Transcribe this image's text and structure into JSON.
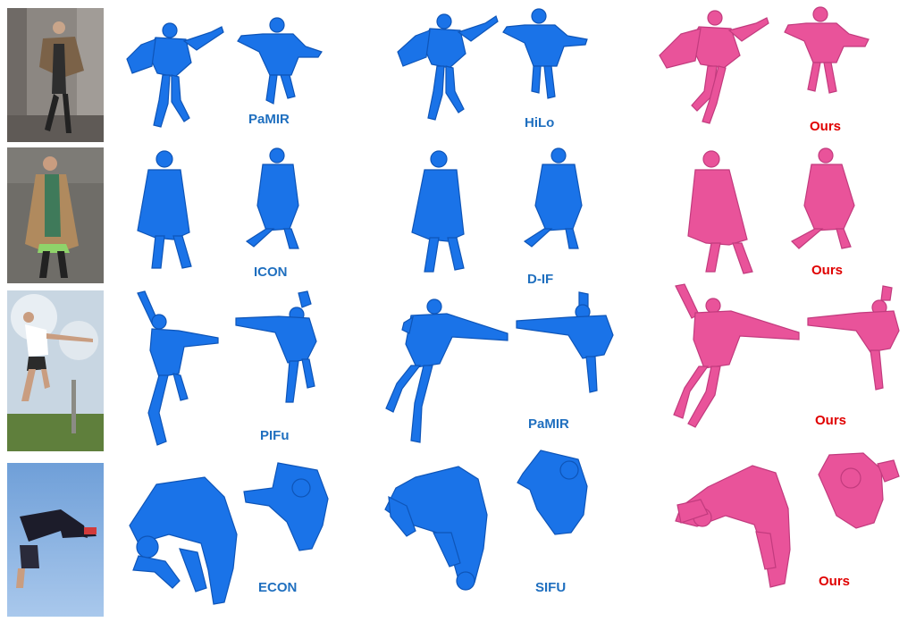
{
  "colors": {
    "baseline_mesh": "#1a73e8",
    "ours_mesh": "#e9539a",
    "baseline_label": "#1f6fbf",
    "ours_label": "#e00000"
  },
  "rows": [
    {
      "photo": "woman-in-cape-dancing-photo",
      "methods": [
        {
          "label": "PaMIR",
          "is_ours": false
        },
        {
          "label": "HiLo",
          "is_ours": false
        },
        {
          "label": "Ours",
          "is_ours": true
        }
      ]
    },
    {
      "photo": "woman-in-long-coat-photo",
      "methods": [
        {
          "label": "ICON",
          "is_ours": false
        },
        {
          "label": "D-IF",
          "is_ours": false
        },
        {
          "label": "Ours",
          "is_ours": true
        }
      ]
    },
    {
      "photo": "man-jumping-outdoors-photo",
      "methods": [
        {
          "label": "PIFu",
          "is_ours": false
        },
        {
          "label": "PaMIR",
          "is_ours": false
        },
        {
          "label": "Ours",
          "is_ours": true
        }
      ]
    },
    {
      "photo": "man-backflip-sky-photo",
      "methods": [
        {
          "label": "ECON",
          "is_ours": false
        },
        {
          "label": "SIFU",
          "is_ours": false
        },
        {
          "label": "Ours",
          "is_ours": true
        }
      ]
    }
  ]
}
